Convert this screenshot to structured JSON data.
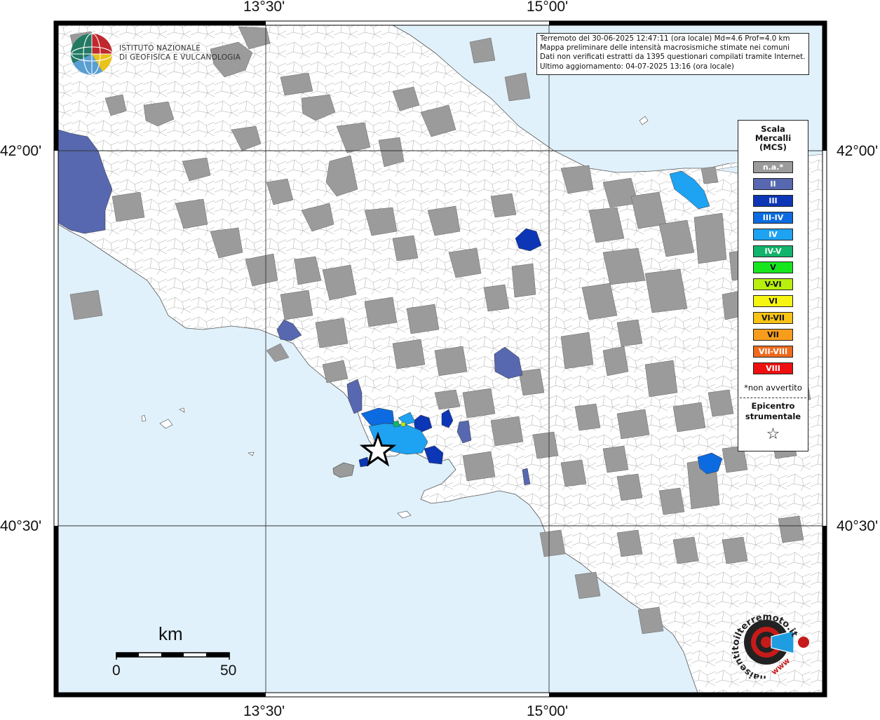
{
  "info": {
    "line1": "Terremoto del 30-06-2025 12:47:11 (ora locale) Md=4.6 Prof=4.0 km",
    "line2": "Mappa preliminare delle intensità macrosismiche stimate nei comuni",
    "line3": "Dati non verificati estratti da 1395 questionari compilati tramite Internet.",
    "line4": "Ultimo aggiornamento: 04-07-2025 13:16 (ora locale)"
  },
  "coords": {
    "top_left": "13°30'",
    "top_right": "15°00'",
    "bottom_left": "13°30'",
    "bottom_right": "15°00'",
    "left_upper": "42°00'",
    "left_lower": "40°30'",
    "right_upper": "42°00'",
    "right_lower": "40°30'"
  },
  "logo": {
    "line1": "ISTITUTO NAZIONALE",
    "line2": "DI GEOFISICA E VULCANOLOGIA",
    "icon": "ingv-globe-icon"
  },
  "legend": {
    "title1": "Scala",
    "title2": "Mercalli",
    "title3": "(MCS)",
    "classes": [
      {
        "label": "n.a.*",
        "color": "#9b9b9b",
        "text": "#ffffff"
      },
      {
        "label": "II",
        "color": "#5768b0",
        "text": "#ffffff"
      },
      {
        "label": "III",
        "color": "#0c36b6",
        "text": "#ffffff"
      },
      {
        "label": "III-IV",
        "color": "#0c6be0",
        "text": "#ffffff"
      },
      {
        "label": "IV",
        "color": "#1ea2f2",
        "text": "#ffffff"
      },
      {
        "label": "IV-V",
        "color": "#12b36b",
        "text": "#ffffff"
      },
      {
        "label": "V",
        "color": "#17e61e",
        "text": "#111111"
      },
      {
        "label": "V-VI",
        "color": "#b8ef0f",
        "text": "#111111"
      },
      {
        "label": "VI",
        "color": "#f5f511",
        "text": "#111111"
      },
      {
        "label": "VI-VII",
        "color": "#f7c315",
        "text": "#111111"
      },
      {
        "label": "VII",
        "color": "#f79d1b",
        "text": "#111111"
      },
      {
        "label": "VII-VIII",
        "color": "#ef6a1e",
        "text": "#ffffff"
      },
      {
        "label": "VIII",
        "color": "#ee1010",
        "text": "#ffffff"
      }
    ],
    "not_felt": "*non avvertito",
    "epicenter1": "Epicentro",
    "epicenter2": "strumentale",
    "epicenter_icon": "star-icon"
  },
  "scale": {
    "unit": "km",
    "start": "0",
    "end": "50"
  },
  "watermark": {
    "text": "haisentitoilterremoto.it",
    "url_text": "www",
    "icon": "target-megaphone-icon"
  },
  "colors": {
    "sea": "#e0f1fb",
    "land": "#ffffff",
    "na": "#9b9b9b",
    "ii": "#5768b0",
    "iii": "#0c36b6",
    "iiiiv": "#0c6be0",
    "iv": "#1ea2f2",
    "iv_v": "#12b36b"
  }
}
